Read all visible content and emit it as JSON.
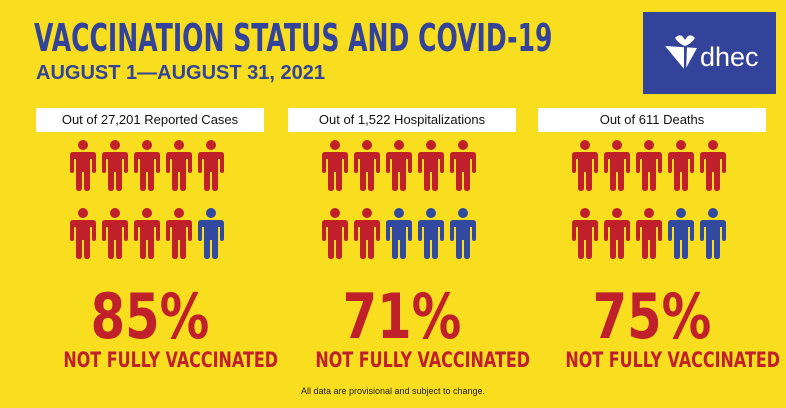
{
  "title": "VACCINATION STATUS AND COVID-19",
  "subtitle": "AUGUST 1—AUGUST 31, 2021",
  "logo": {
    "text": "dhec",
    "icon": "sc-dhec-palmetto-icon"
  },
  "colors": {
    "background": "#f9dd1f",
    "brand_blue": "#33439a",
    "red": "#c0202a",
    "vaccinated_blue": "#3249a0"
  },
  "panels": [
    {
      "label": "Out of 27,201 Reported Cases",
      "percent": "85%",
      "caption": "NOT FULLY VACCINATED",
      "red_count": 9,
      "blue_count": 1
    },
    {
      "label": "Out of 1,522 Hospitalizations",
      "percent": "71%",
      "caption": "NOT FULLY VACCINATED",
      "red_count": 7,
      "blue_count": 3
    },
    {
      "label": "Out of 611 Deaths",
      "percent": "75%",
      "caption": "NOT FULLY VACCINATED",
      "red_count": 8,
      "blue_count": 2
    }
  ],
  "footer": "All data are provisional and subject to change."
}
